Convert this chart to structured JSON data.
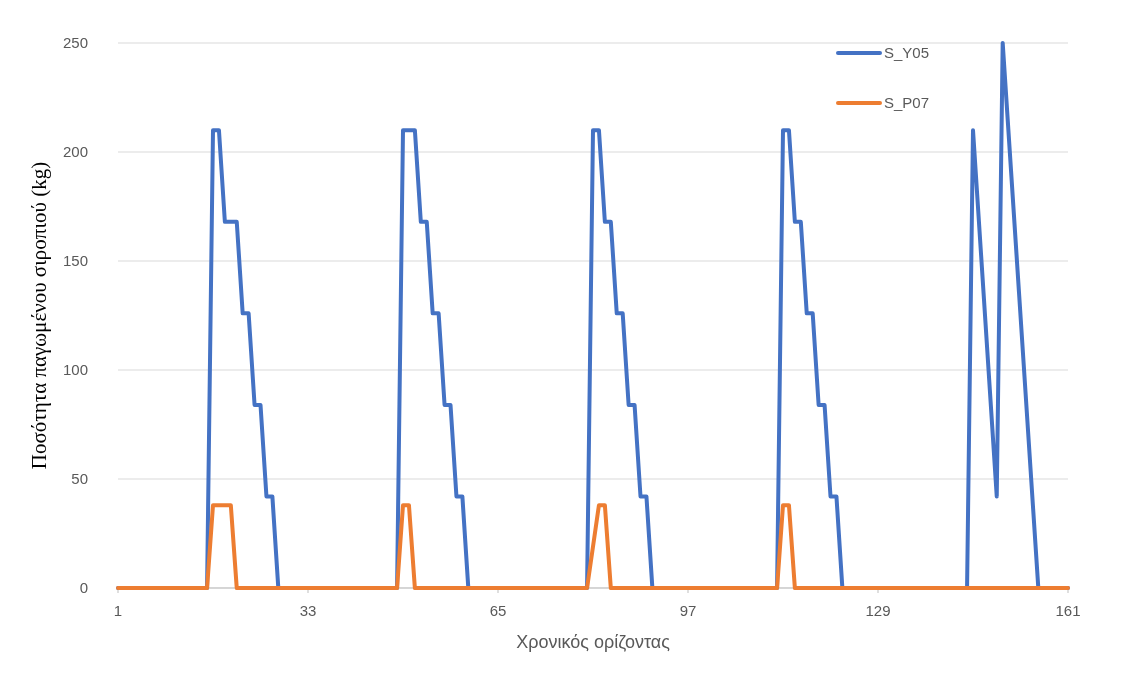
{
  "chart_data": {
    "type": "line",
    "xlabel": "Χρονικός ορίζοντας",
    "ylabel": "Ποσότητα παγωμένου σιροπιού (kg)",
    "xlim": [
      1,
      161
    ],
    "xticks": [
      1,
      33,
      65,
      97,
      129,
      161
    ],
    "ylim": [
      0,
      250
    ],
    "yticks": [
      0,
      50,
      100,
      150,
      200,
      250
    ],
    "grid": "y",
    "legend": "top right",
    "line_style": "solid",
    "series": [
      {
        "name": "S_Y05",
        "color": "#4472c4",
        "x": [
          1,
          16,
          17,
          18,
          19,
          21,
          22,
          23,
          24,
          25,
          26,
          27,
          28,
          48,
          49,
          51,
          52,
          53,
          54,
          55,
          56,
          57,
          58,
          59,
          60,
          80,
          81,
          82,
          83,
          84,
          85,
          86,
          87,
          88,
          89,
          90,
          91,
          112,
          113,
          114,
          115,
          116,
          117,
          118,
          119,
          120,
          121,
          122,
          123,
          144,
          145,
          149,
          150,
          156,
          161
        ],
        "values": [
          0,
          0,
          210,
          210,
          168,
          168,
          126,
          126,
          84,
          84,
          42,
          42,
          0,
          0,
          210,
          210,
          168,
          168,
          126,
          126,
          84,
          84,
          42,
          42,
          0,
          0,
          210,
          210,
          168,
          168,
          126,
          126,
          84,
          84,
          42,
          42,
          0,
          0,
          210,
          210,
          168,
          168,
          126,
          126,
          84,
          84,
          42,
          42,
          0,
          0,
          210,
          42,
          250,
          0,
          0
        ]
      },
      {
        "name": "S_P07",
        "color": "#ed7d31",
        "x": [
          1,
          16,
          17,
          20,
          21,
          48,
          49,
          50,
          51,
          80,
          82,
          83,
          84,
          112,
          113,
          114,
          115,
          161
        ],
        "values": [
          0,
          0,
          38,
          38,
          0,
          0,
          38,
          38,
          0,
          0,
          38,
          38,
          0,
          0,
          38,
          38,
          0,
          0
        ]
      }
    ]
  }
}
